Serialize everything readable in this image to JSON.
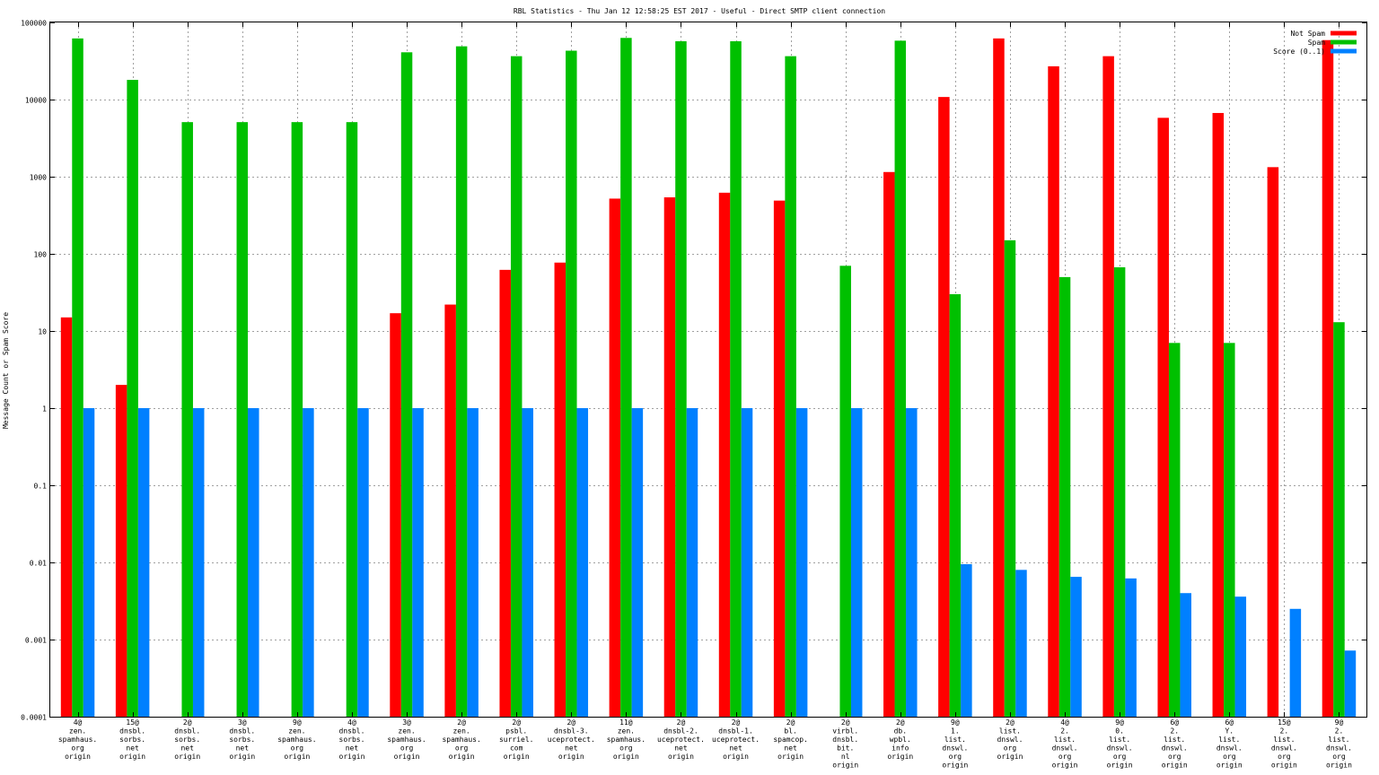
{
  "chart_data": {
    "type": "bar",
    "title": "RBL Statistics - Thu Jan 12 12:58:25 EST 2017 - Useful - Direct SMTP client connection",
    "ylabel": "Message Count or Spam Score",
    "xlabel": "",
    "yscale": "log",
    "ylim": [
      0.0001,
      100000
    ],
    "yticks": [
      "0.0001",
      "0.001",
      "0.01",
      "0.1",
      "1",
      "10",
      "100",
      "1000",
      "10000",
      "100000"
    ],
    "grid": true,
    "legend_position": "top-right",
    "categories": [
      [
        "4@",
        "zen.",
        "spamhaus.",
        "org",
        "origin"
      ],
      [
        "15@",
        "dnsbl.",
        "sorbs.",
        "net",
        "origin"
      ],
      [
        "2@",
        "dnsbl.",
        "sorbs.",
        "net",
        "origin"
      ],
      [
        "3@",
        "dnsbl.",
        "sorbs.",
        "net",
        "origin"
      ],
      [
        "9@",
        "zen.",
        "spamhaus.",
        "org",
        "origin"
      ],
      [
        "4@",
        "dnsbl.",
        "sorbs.",
        "net",
        "origin"
      ],
      [
        "3@",
        "zen.",
        "spamhaus.",
        "org",
        "origin"
      ],
      [
        "2@",
        "zen.",
        "spamhaus.",
        "org",
        "origin"
      ],
      [
        "2@",
        "psbl.",
        "surriel.",
        "com",
        "origin"
      ],
      [
        "2@",
        "dnsbl-3.",
        "uceprotect.",
        "net",
        "origin"
      ],
      [
        "11@",
        "zen.",
        "spamhaus.",
        "org",
        "origin"
      ],
      [
        "2@",
        "dnsbl-2.",
        "uceprotect.",
        "net",
        "origin"
      ],
      [
        "2@",
        "dnsbl-1.",
        "uceprotect.",
        "net",
        "origin"
      ],
      [
        "2@",
        "bl.",
        "spamcop.",
        "net",
        "origin"
      ],
      [
        "2@",
        "virbl.",
        "dnsbl.",
        "bit.",
        "nl",
        "origin"
      ],
      [
        "2@",
        "db.",
        "wpbl.",
        "info",
        "origin"
      ],
      [
        "9@",
        "1.",
        "list.",
        "dnswl.",
        "org",
        "origin"
      ],
      [
        "2@",
        "list.",
        "dnswl.",
        "org",
        "origin"
      ],
      [
        "4@",
        "2.",
        "list.",
        "dnswl.",
        "org",
        "origin"
      ],
      [
        "9@",
        "0.",
        "list.",
        "dnswl.",
        "org",
        "origin"
      ],
      [
        "6@",
        "2.",
        "list.",
        "dnswl.",
        "org",
        "origin"
      ],
      [
        "6@",
        "Y.",
        "list.",
        "dnswl.",
        "org",
        "origin"
      ],
      [
        "15@",
        "2.",
        "list.",
        "dnswl.",
        "org",
        "origin"
      ],
      [
        "9@",
        "2.",
        "list.",
        "dnswl.",
        "org",
        "origin"
      ]
    ],
    "series": [
      {
        "name": "Not Spam",
        "color": "#ff0000",
        "values": [
          15,
          2,
          null,
          null,
          null,
          null,
          17,
          22,
          62,
          77,
          520,
          540,
          620,
          490,
          null,
          1150,
          10800,
          62000,
          27000,
          36500,
          5800,
          6700,
          1330,
          59000
        ]
      },
      {
        "name": "Spam",
        "color": "#00c000",
        "values": [
          62000,
          18000,
          5100,
          5100,
          5100,
          5100,
          41000,
          49000,
          36500,
          43000,
          63000,
          57000,
          57000,
          36500,
          70,
          58000,
          30,
          150,
          50,
          67,
          7,
          7,
          null,
          13
        ]
      },
      {
        "name": "Score (0..1)",
        "color": "#0080ff",
        "values": [
          1,
          1,
          1,
          1,
          1,
          1,
          1,
          1,
          1,
          1,
          1,
          1,
          1,
          1,
          1,
          1,
          0.0095,
          0.008,
          0.0065,
          0.0062,
          0.004,
          0.0036,
          0.0025,
          0.00072
        ]
      }
    ]
  }
}
